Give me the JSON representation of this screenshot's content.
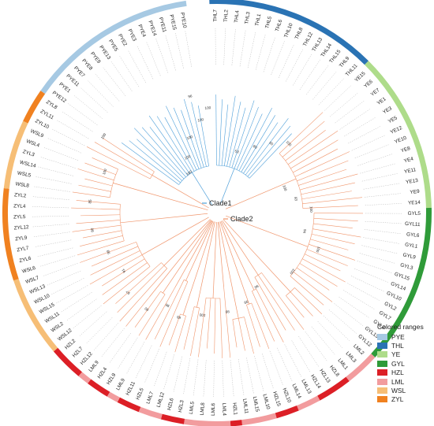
{
  "legend": {
    "title": "Colored ranges",
    "entries": [
      {
        "label": "PYE",
        "color": "#a6c9e3"
      },
      {
        "label": "THL",
        "color": "#2a73b4"
      },
      {
        "label": "YE",
        "color": "#aedc8a"
      },
      {
        "label": "GYL",
        "color": "#2f9b39"
      },
      {
        "label": "HZL",
        "color": "#dc1f26"
      },
      {
        "label": "LML",
        "color": "#f29c9e"
      },
      {
        "label": "WSL",
        "color": "#f6be76"
      },
      {
        "label": "ZYL",
        "color": "#f08120"
      }
    ]
  },
  "clade_labels": [
    {
      "label": "Clade1",
      "color": "#4e9fd9"
    },
    {
      "label": "Clade2",
      "color": "#f0956b"
    }
  ],
  "groups": [
    {
      "name": "THL",
      "color": "#2a73b4",
      "branch": "#4e9fd9",
      "tips": [
        "THL7",
        "THL2",
        "THL4",
        "THL3",
        "THL1",
        "THL5",
        "THL6",
        "THL10",
        "THL8",
        "THL12",
        "THL13",
        "THL14",
        "THL15",
        "THL9",
        "THL11"
      ]
    },
    {
      "name": "YE",
      "color": "#aedc8a",
      "branch": "#f0956b",
      "tips": [
        "YE15",
        "YE6",
        "YE7",
        "YE1",
        "YE3",
        "YE5",
        "YE12",
        "YE10",
        "YE8",
        "YE4",
        "YE11",
        "YE13",
        "YE9",
        "YE14"
      ]
    },
    {
      "name": "GYL",
      "color": "#2f9b39",
      "branch": "#f0956b",
      "tips": [
        "GYL5",
        "GYL11",
        "GYL6",
        "GYL1",
        "GYL9",
        "GYL3",
        "GYL15",
        "GYL14",
        "GYL10",
        "GYL2",
        "GYL7",
        "GYL8",
        "GYL13",
        "GYL12"
      ]
    },
    {
      "name": "LML",
      "color": "#f29c9e",
      "branch": "#f0956b",
      "tips": [
        "LML2",
        "LML3",
        "LML1"
      ]
    },
    {
      "name": "HZL",
      "color": "#dc1f26",
      "branch": "#f0956b",
      "tips": [
        "HZL8",
        "HZL13",
        "HZL14"
      ]
    },
    {
      "name": "LML",
      "color": "#f29c9e",
      "branch": "#f0956b",
      "tips": [
        "LML13",
        "LML14"
      ]
    },
    {
      "name": "HZL",
      "color": "#dc1f26",
      "branch": "#f0956b",
      "tips": [
        "HZL10",
        "HZL15"
      ]
    },
    {
      "name": "LML",
      "color": "#f29c9e",
      "branch": "#f0956b",
      "tips": [
        "LML10",
        "LML15",
        "LML11"
      ]
    },
    {
      "name": "HZL",
      "color": "#dc1f26",
      "branch": "#f0956b",
      "tips": [
        "HZL1"
      ]
    },
    {
      "name": "LML",
      "color": "#f29c9e",
      "branch": "#f0956b",
      "tips": [
        "LML4",
        "LML6",
        "LML8",
        "LML5"
      ]
    },
    {
      "name": "HZL",
      "color": "#dc1f26",
      "branch": "#f0956b",
      "tips": [
        "HZL3",
        "HZL6"
      ]
    },
    {
      "name": "LML",
      "color": "#f29c9e",
      "branch": "#f0956b",
      "tips": [
        "LML12",
        "LML7"
      ]
    },
    {
      "name": "HZL",
      "color": "#dc1f26",
      "branch": "#f0956b",
      "tips": [
        "HZL5",
        "HZL11"
      ]
    },
    {
      "name": "LML",
      "color": "#f29c9e",
      "branch": "#f0956b",
      "tips": [
        "LML9"
      ]
    },
    {
      "name": "HZL",
      "color": "#dc1f26",
      "branch": "#f0956b",
      "tips": [
        "HZL9",
        "HZL4"
      ]
    },
    {
      "name": "LML",
      "color": "#f29c9e",
      "branch": "#f0956b",
      "tips": [
        "LML9"
      ]
    },
    {
      "name": "HZL",
      "color": "#dc1f26",
      "branch": "#f0956b",
      "tips": [
        "HZL12",
        "HZL7",
        "HZL2"
      ]
    },
    {
      "name": "WSL",
      "color": "#f6be76",
      "branch": "#f0956b",
      "tips": [
        "WSL12",
        "WSL2",
        "WSL11",
        "WSL15",
        "WSL10",
        "WSL13",
        "WSL7"
      ]
    },
    {
      "name": "ZYL",
      "color": "#f08120",
      "branch": "#f0956b",
      "tips": [
        "WSL6",
        "ZYL6",
        "ZYL7",
        "ZYL9",
        "ZYL12",
        "ZYL5",
        "ZYL4",
        "ZYL2"
      ]
    },
    {
      "name": "WSL",
      "color": "#f6be76",
      "branch": "#f0956b",
      "tips": [
        "WSL8",
        "WSL5",
        "WSL14",
        "ZYL3",
        "WSL4",
        "WSL9"
      ]
    },
    {
      "name": "ZYL",
      "color": "#f08120",
      "branch": "#f0956b",
      "tips": [
        "ZYL10",
        "ZYL11",
        "ZYL8"
      ]
    },
    {
      "name": "PYE",
      "color": "#a6c9e3",
      "branch": "#4e9fd9",
      "tips": [
        "PYE12",
        "PYE1",
        "PYE11",
        "PYE7",
        "PYE8",
        "PYE9",
        "PYE13",
        "PYE5",
        "PYE2",
        "PYE3",
        "PYE4",
        "PYE14",
        "PYE11",
        "PYE15",
        "PYE10"
      ]
    }
  ],
  "bootstrap": [
    {
      "label": "100"
    },
    {
      "label": "100"
    },
    {
      "label": "100"
    },
    {
      "label": "100"
    },
    {
      "label": "96"
    },
    {
      "label": "100"
    },
    {
      "label": "53"
    },
    {
      "label": "80"
    },
    {
      "label": "60"
    },
    {
      "label": "100"
    },
    {
      "label": "100"
    },
    {
      "label": "93"
    },
    {
      "label": "100"
    },
    {
      "label": "94"
    },
    {
      "label": "100"
    },
    {
      "label": "100"
    },
    {
      "label": "96"
    },
    {
      "label": "99"
    },
    {
      "label": "99"
    },
    {
      "label": "100"
    },
    {
      "label": "65"
    },
    {
      "label": "96"
    },
    {
      "label": "90"
    },
    {
      "label": "97"
    },
    {
      "label": "91"
    },
    {
      "label": "99"
    },
    {
      "label": "80"
    },
    {
      "label": "85"
    },
    {
      "label": "100"
    },
    {
      "label": "100"
    }
  ]
}
